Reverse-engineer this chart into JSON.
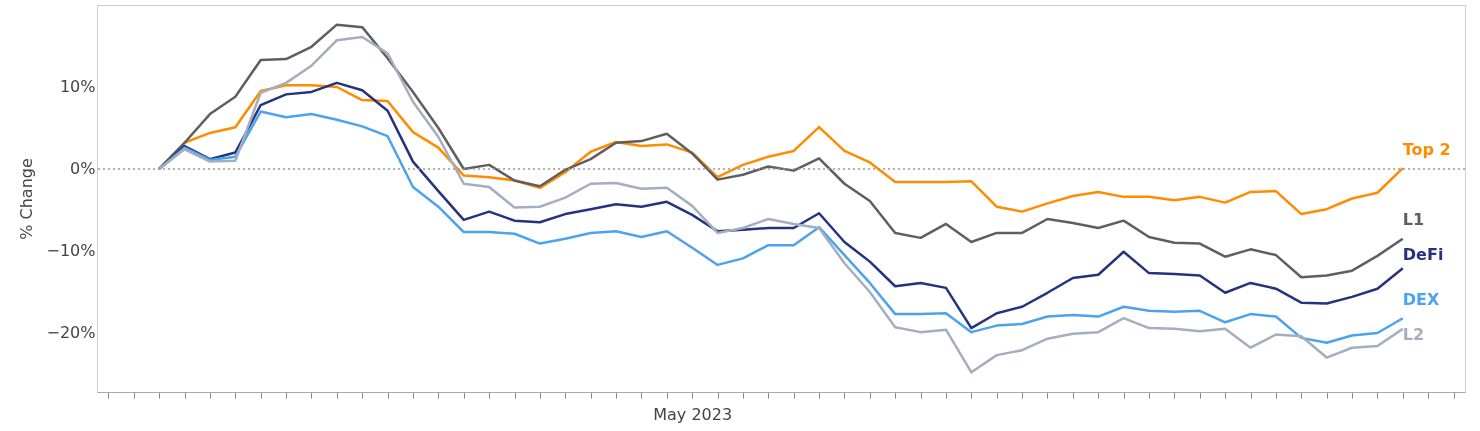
{
  "chart_data": {
    "type": "line",
    "ylabel": "% Change",
    "categories": [
      null,
      null,
      null,
      null,
      null,
      null,
      null,
      null,
      null,
      null,
      null,
      null,
      null,
      null,
      null,
      null,
      null,
      null,
      null,
      null,
      null,
      "May 2023",
      null,
      null,
      null,
      null,
      null,
      null,
      null,
      null,
      null,
      null,
      null,
      null,
      null,
      null,
      null,
      null,
      null,
      null,
      null,
      null,
      null,
      null,
      null,
      null,
      null,
      null,
      null,
      null
    ],
    "series": [
      {
        "name": "Top 2",
        "color": "#ff8c00",
        "values": [
          0,
          3.2,
          4.4,
          5.1,
          9.5,
          10.2,
          10.2,
          10.0,
          8.4,
          8.3,
          4.5,
          2.6,
          -0.8,
          -1.0,
          -1.4,
          -2.3,
          -0.4,
          2.1,
          3.3,
          2.8,
          3.0,
          2.0,
          -1.0,
          0.5,
          1.5,
          2.2,
          5.1,
          2.2,
          0.8,
          -1.6,
          -1.6,
          -1.6,
          -1.5,
          -4.6,
          -5.2,
          -4.2,
          -3.3,
          -2.8,
          -3.4,
          -3.4,
          -3.8,
          -3.4,
          -4.1,
          -2.8,
          -2.7,
          -5.5,
          -4.9,
          -3.6,
          -2.9,
          0.1
        ]
      },
      {
        "name": "L1",
        "color": "#5f5f5f",
        "values": [
          0,
          3.2,
          6.7,
          8.8,
          13.3,
          13.4,
          14.9,
          17.6,
          17.3,
          13.5,
          9.4,
          5.0,
          0,
          0.5,
          -1.4,
          -2.1,
          -0.1,
          1.2,
          3.2,
          3.4,
          4.3,
          1.9,
          -1.3,
          -0.7,
          0.3,
          -0.2,
          1.3,
          -1.8,
          -3.9,
          -7.8,
          -8.4,
          -6.7,
          -8.9,
          -7.8,
          -7.8,
          -6.1,
          -6.6,
          -7.2,
          -6.3,
          -8.3,
          -9.0,
          -9.1,
          -10.7,
          -9.8,
          -10.5,
          -13.2,
          -13.0,
          -12.4,
          -10.6,
          -8.5
        ]
      },
      {
        "name": "DeFi",
        "color": "#25327f",
        "values": [
          0,
          2.8,
          1.2,
          2.0,
          7.8,
          9.1,
          9.4,
          10.5,
          9.6,
          7.1,
          0.9,
          -2.7,
          -6.2,
          -5.2,
          -6.3,
          -6.5,
          -5.5,
          -4.9,
          -4.3,
          -4.6,
          -4.0,
          -5.6,
          -7.6,
          -7.4,
          -7.2,
          -7.2,
          -5.4,
          -8.9,
          -11.3,
          -14.3,
          -13.9,
          -14.5,
          -19.4,
          -17.6,
          -16.8,
          -15.1,
          -13.3,
          -12.9,
          -10.1,
          -12.7,
          -12.8,
          -13.0,
          -15.1,
          -13.9,
          -14.6,
          -16.3,
          -16.4,
          -15.6,
          -14.6,
          -12.1
        ]
      },
      {
        "name": "DEX",
        "color": "#4ba3f0",
        "values": [
          0,
          2.6,
          1.1,
          1.5,
          7.0,
          6.3,
          6.7,
          6.0,
          5.2,
          4.0,
          -2.2,
          -4.6,
          -7.7,
          -7.7,
          -7.9,
          -9.1,
          -8.5,
          -7.8,
          -7.6,
          -8.3,
          -7.6,
          -9.6,
          -11.7,
          -10.9,
          -9.3,
          -9.3,
          -7.1,
          -10.5,
          -13.9,
          -17.7,
          -17.7,
          -17.6,
          -19.9,
          -19.1,
          -18.9,
          -18.0,
          -17.8,
          -18.0,
          -16.8,
          -17.3,
          -17.4,
          -17.3,
          -18.7,
          -17.7,
          -18.0,
          -20.6,
          -21.2,
          -20.3,
          -20.0,
          -18.2
        ]
      },
      {
        "name": "L2",
        "color": "#a3afbf",
        "values": [
          0,
          2.4,
          0.9,
          1.0,
          9.3,
          10.5,
          12.6,
          15.7,
          16.1,
          14.1,
          8.2,
          3.9,
          -1.8,
          -2.2,
          -4.7,
          -4.6,
          -3.5,
          -1.8,
          -1.7,
          -2.4,
          -2.3,
          -4.5,
          -7.8,
          -7.2,
          -6.1,
          -6.7,
          -7.2,
          -11.5,
          -15.0,
          -19.3,
          -19.9,
          -19.6,
          -24.8,
          -22.7,
          -22.1,
          -20.7,
          -20.1,
          -19.9,
          -18.2,
          -19.4,
          -19.5,
          -19.8,
          -19.5,
          -21.8,
          -20.2,
          -20.4,
          -23.0,
          -21.8,
          -21.6,
          -19.5
        ]
      }
    ],
    "ylim": [
      -27.2,
      20
    ],
    "yticks": [
      {
        "value": -20,
        "label": "−20%"
      },
      {
        "value": -10,
        "label": "−10%"
      },
      {
        "value": 0,
        "label": "0%"
      },
      {
        "value": 10,
        "label": "10%"
      }
    ],
    "ref_lines": [
      {
        "axis": "y",
        "value": 0,
        "color": "#999999",
        "line_style": "dotted"
      }
    ]
  }
}
